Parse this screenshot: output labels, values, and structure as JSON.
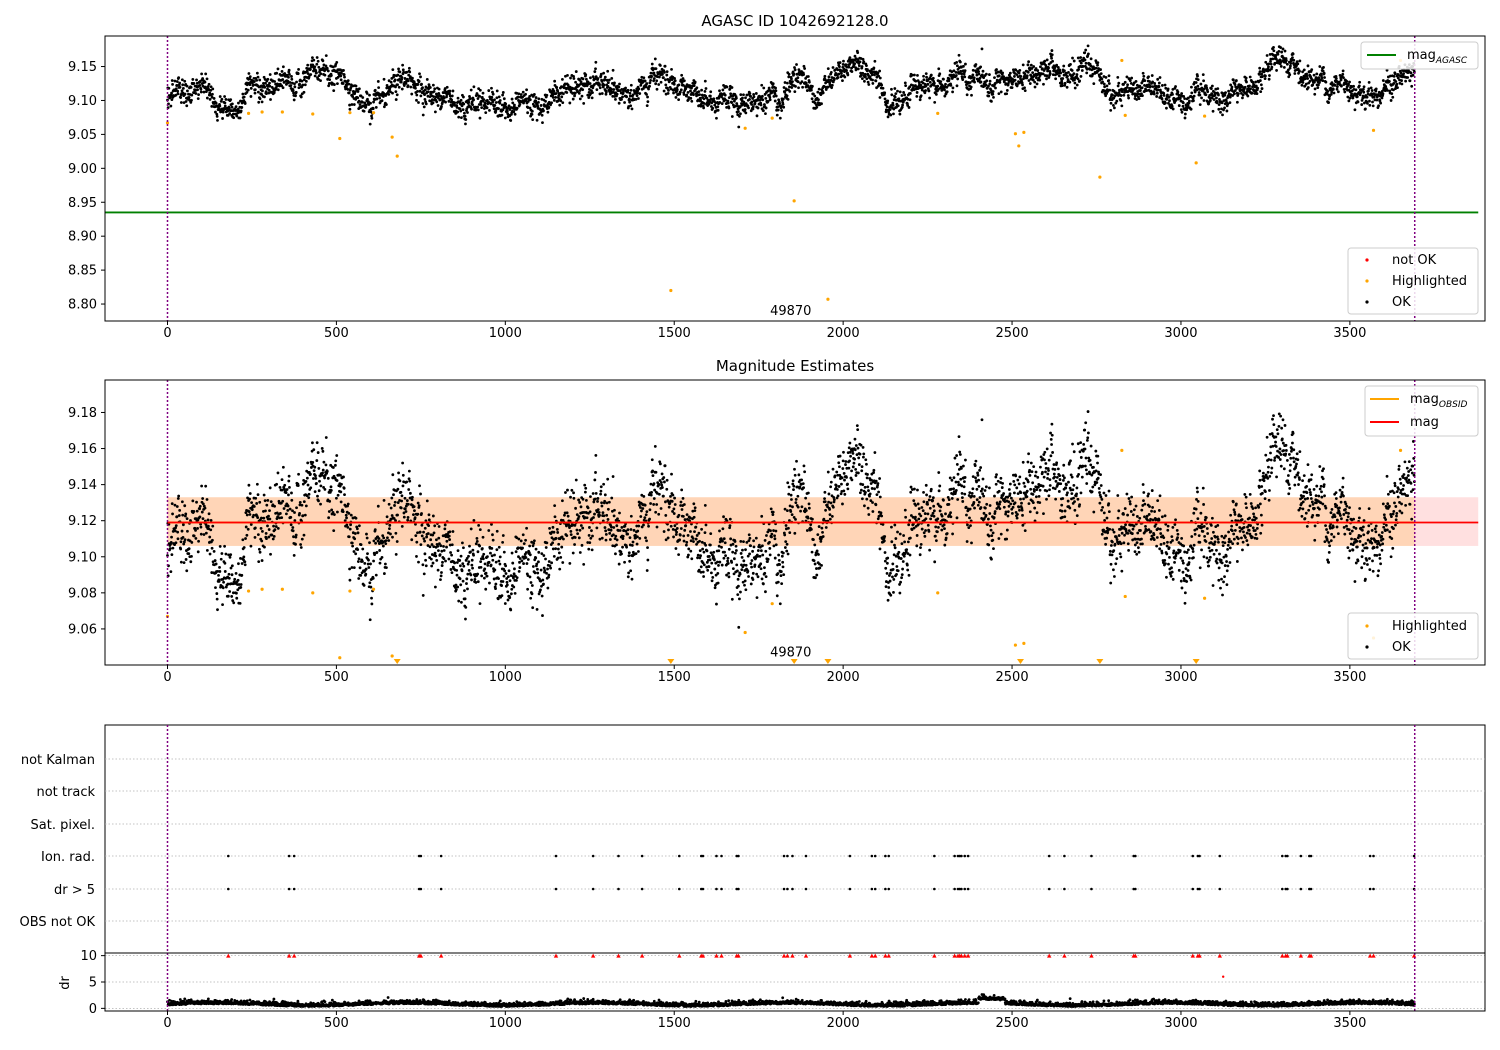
{
  "chart_data": [
    {
      "type": "scatter",
      "title": "AGASC ID 1042692128.0",
      "xlim": [
        -185,
        3900
      ],
      "ylim": [
        8.775,
        9.195
      ],
      "xticks": [
        0,
        500,
        1000,
        1500,
        2000,
        2500,
        3000,
        3500,
        4000
      ],
      "yticks": [
        8.8,
        8.85,
        8.9,
        8.95,
        9.0,
        9.05,
        9.1,
        9.15
      ],
      "vlines": [
        0,
        3692
      ],
      "obsid_label": {
        "text": "49870",
        "x": 1845,
        "y": 8.79
      },
      "mag_agasc": {
        "value": 8.935,
        "x_end": 3880,
        "color": "#008000"
      },
      "ok_band": {
        "center_start": 9.108,
        "center_end": 9.128,
        "spread": 0.015
      },
      "highlighted": {
        "color": "#ffa500",
        "x": [
          0,
          240,
          280,
          340,
          430,
          510,
          540,
          610,
          665,
          680,
          1490,
          1710,
          1790,
          1855,
          1955,
          2280,
          2510,
          2520,
          2535,
          2760,
          2825,
          2835,
          3045,
          3070,
          3570,
          3650
        ],
        "y": [
          9.067,
          9.081,
          9.083,
          9.083,
          9.08,
          9.044,
          9.082,
          9.082,
          9.046,
          9.018,
          8.82,
          9.059,
          9.074,
          8.952,
          8.807,
          9.081,
          9.051,
          9.033,
          9.053,
          8.987,
          9.159,
          9.078,
          9.008,
          9.077,
          9.056,
          9.159
        ]
      },
      "legends": [
        {
          "position": "upper-right",
          "entries": [
            {
              "label": "mag",
              "sub": "AGASC",
              "kind": "line",
              "color": "#008000"
            }
          ]
        },
        {
          "position": "lower-right",
          "entries": [
            {
              "label": "not OK",
              "kind": "dot",
              "color": "#ff0000"
            },
            {
              "label": "Highlighted",
              "kind": "dot",
              "color": "#ffa500"
            },
            {
              "label": "OK",
              "kind": "dot",
              "color": "#000000"
            }
          ]
        }
      ]
    },
    {
      "type": "scatter",
      "title": "Magnitude Estimates",
      "xlim": [
        -185,
        3900
      ],
      "ylim": [
        9.04,
        9.198
      ],
      "xticks": [
        0,
        500,
        1000,
        1500,
        2000,
        2500,
        3000,
        3500,
        4000
      ],
      "yticks": [
        9.06,
        9.08,
        9.1,
        9.12,
        9.14,
        9.16,
        9.18
      ],
      "vlines": [
        0,
        3692
      ],
      "obsid_label": {
        "text": "49870",
        "x": 1845,
        "y": 9.047
      },
      "mag": {
        "value": 9.119,
        "x_end": 3880,
        "color": "#ff0000",
        "band": [
          9.106,
          9.133
        ]
      },
      "mag_obsid": {
        "value": 9.119,
        "x_end": 3692,
        "color": "#ffa500",
        "band": [
          9.106,
          9.133
        ]
      },
      "ok_band": {
        "center_start": 9.108,
        "center_end": 9.128,
        "spread": 0.015
      },
      "highlighted": {
        "color": "#ffa500",
        "x": [
          0,
          240,
          280,
          340,
          430,
          510,
          540,
          610,
          665,
          1710,
          1790,
          2280,
          2510,
          2535,
          2825,
          2835,
          3070,
          3570,
          3650
        ],
        "y": [
          9.067,
          9.081,
          9.082,
          9.082,
          9.08,
          9.044,
          9.081,
          9.082,
          9.045,
          9.058,
          9.074,
          9.08,
          9.051,
          9.052,
          9.159,
          9.078,
          9.077,
          9.055,
          9.159
        ]
      },
      "below_range": {
        "color": "#ffa500",
        "x": [
          680,
          1490,
          1855,
          1955,
          2525,
          2760,
          3045
        ]
      },
      "legends": [
        {
          "position": "upper-right",
          "entries": [
            {
              "label": "mag",
              "sub": "OBSID",
              "kind": "line",
              "color": "#ffa500"
            },
            {
              "label": "mag",
              "kind": "line",
              "color": "#ff0000"
            }
          ]
        },
        {
          "position": "lower-right",
          "entries": [
            {
              "label": "Highlighted",
              "kind": "dot",
              "color": "#ffa500"
            },
            {
              "label": "OK",
              "kind": "dot",
              "color": "#000000"
            }
          ]
        }
      ]
    },
    {
      "type": "scatter",
      "title": "",
      "xlim": [
        -185,
        3900
      ],
      "categories": [
        "not Kalman",
        "not track",
        "Sat. pixel.",
        "Ion. rad.",
        "dr > 5",
        "OBS not OK"
      ],
      "flagged_x": [
        180,
        360,
        375,
        745,
        750,
        810,
        1150,
        1260,
        1335,
        1405,
        1515,
        1580,
        1585,
        1625,
        1640,
        1685,
        1690,
        1825,
        1835,
        1850,
        1890,
        2020,
        2085,
        2095,
        2125,
        2135,
        2270,
        2330,
        2340,
        2345,
        2350,
        2360,
        2370,
        2610,
        2655,
        2735,
        2860,
        2865,
        3035,
        3050,
        3055,
        3115,
        3300,
        3310,
        3315,
        3355,
        3380,
        3385,
        3560,
        3570,
        3690
      ],
      "flag_rows": [
        "Ion. rad.",
        "dr > 5"
      ]
    },
    {
      "type": "scatter",
      "title": "",
      "ylabel": "dr",
      "xlim": [
        -185,
        3900
      ],
      "ylim": [
        -0.5,
        10.5
      ],
      "xticks": [
        0,
        500,
        1000,
        1500,
        2000,
        2500,
        3000,
        3500,
        4000
      ],
      "yticks": [
        0,
        5,
        10
      ],
      "vlines": [
        0,
        3692
      ],
      "dr_clipped_value": 10,
      "dr_outlier": {
        "x": 3125,
        "y": 6.0
      },
      "dr_baseline": 0.6
    }
  ]
}
